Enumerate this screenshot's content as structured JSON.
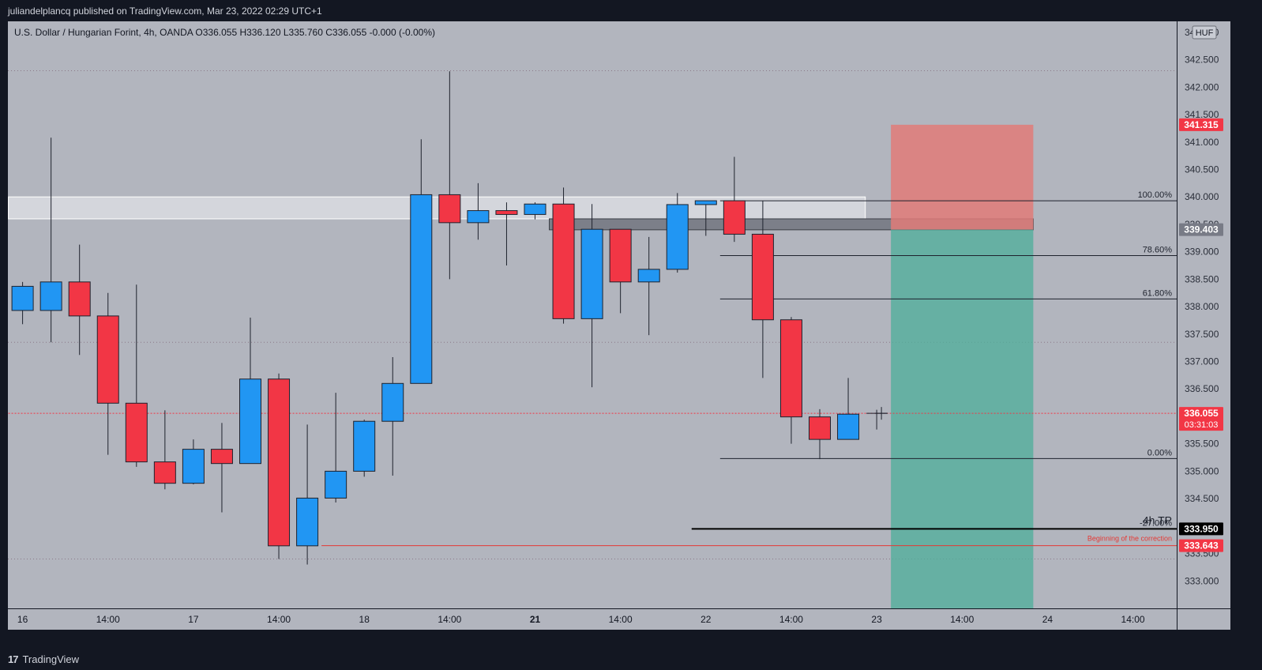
{
  "header": {
    "published": "juliandelplancq published on TradingView.com, Mar 23, 2022 02:29 UTC+1",
    "symbol_line": "U.S. Dollar / Hungarian Forint, 4h, OANDA  O336.055  H336.120  L335.760  C336.055  -0.000 (-0.00%)"
  },
  "footer": {
    "brand": "TradingView",
    "logo_glyph": "17"
  },
  "colors": {
    "background": "#b2b5be",
    "up": "#2196f3",
    "down": "#f23645",
    "tp_zone": "#4caf9a",
    "sl_zone": "#e07b79"
  },
  "chart_data": {
    "type": "candlestick",
    "symbol": "USDHUF",
    "timeframe": "4h",
    "currency": "HUF",
    "ylim": [
      332.5,
      343.2
    ],
    "y_ticks": [
      333.0,
      333.5,
      334.0,
      334.5,
      335.0,
      335.5,
      336.0,
      336.5,
      337.0,
      337.5,
      338.0,
      338.5,
      339.0,
      339.5,
      340.0,
      340.5,
      341.0,
      341.5,
      342.0,
      342.5,
      343.0
    ],
    "y_tick_labels": [
      "333.000",
      "333.500",
      "334.000",
      "334.500",
      "335.000",
      "335.500",
      "336.000",
      "336.500",
      "337.000",
      "337.500",
      "338.000",
      "338.500",
      "339.000",
      "339.500",
      "340.000",
      "340.500",
      "341.000",
      "341.500",
      "342.000",
      "342.500",
      "343.000"
    ],
    "x_labels": [
      {
        "bar": 0,
        "label": "16",
        "bold": false
      },
      {
        "bar": 3,
        "label": "14:00",
        "bold": false
      },
      {
        "bar": 6,
        "label": "17",
        "bold": false
      },
      {
        "bar": 9,
        "label": "14:00",
        "bold": false
      },
      {
        "bar": 12,
        "label": "18",
        "bold": false
      },
      {
        "bar": 15,
        "label": "14:00",
        "bold": false
      },
      {
        "bar": 18,
        "label": "21",
        "bold": true
      },
      {
        "bar": 21,
        "label": "14:00",
        "bold": false
      },
      {
        "bar": 24,
        "label": "22",
        "bold": false
      },
      {
        "bar": 27,
        "label": "14:00",
        "bold": false
      },
      {
        "bar": 30,
        "label": "23",
        "bold": false
      },
      {
        "bar": 33,
        "label": "14:00",
        "bold": false
      },
      {
        "bar": 36,
        "label": "24",
        "bold": false
      },
      {
        "bar": 39,
        "label": "14:00",
        "bold": false
      }
    ],
    "candles": [
      {
        "o": 337.93,
        "h": 338.45,
        "l": 337.68,
        "c": 338.37
      },
      {
        "o": 337.93,
        "h": 341.08,
        "l": 337.35,
        "c": 338.45
      },
      {
        "o": 338.45,
        "h": 339.13,
        "l": 337.12,
        "c": 337.83
      },
      {
        "o": 337.83,
        "h": 338.25,
        "l": 335.3,
        "c": 336.24
      },
      {
        "o": 336.24,
        "h": 338.4,
        "l": 335.08,
        "c": 335.17
      },
      {
        "o": 335.17,
        "h": 336.11,
        "l": 334.67,
        "c": 334.78
      },
      {
        "o": 334.78,
        "h": 335.58,
        "l": 334.76,
        "c": 335.4
      },
      {
        "o": 335.4,
        "h": 335.88,
        "l": 334.25,
        "c": 335.14
      },
      {
        "o": 335.14,
        "h": 337.8,
        "l": 335.14,
        "c": 336.68
      },
      {
        "o": 336.68,
        "h": 336.78,
        "l": 333.4,
        "c": 333.64
      },
      {
        "o": 333.64,
        "h": 335.85,
        "l": 333.3,
        "c": 334.51
      },
      {
        "o": 334.51,
        "h": 336.43,
        "l": 334.43,
        "c": 335.0
      },
      {
        "o": 335.0,
        "h": 335.94,
        "l": 334.9,
        "c": 335.91
      },
      {
        "o": 335.91,
        "h": 337.08,
        "l": 334.92,
        "c": 336.6
      },
      {
        "o": 336.6,
        "h": 341.05,
        "l": 336.6,
        "c": 340.04
      },
      {
        "o": 340.04,
        "h": 342.29,
        "l": 338.5,
        "c": 339.53
      },
      {
        "o": 339.53,
        "h": 340.25,
        "l": 339.22,
        "c": 339.75
      },
      {
        "o": 339.75,
        "h": 339.9,
        "l": 338.75,
        "c": 339.68
      },
      {
        "o": 339.68,
        "h": 339.9,
        "l": 339.59,
        "c": 339.87
      },
      {
        "o": 339.87,
        "h": 340.17,
        "l": 337.69,
        "c": 337.78
      },
      {
        "o": 337.78,
        "h": 339.87,
        "l": 336.53,
        "c": 339.41
      },
      {
        "o": 339.41,
        "h": 339.41,
        "l": 337.88,
        "c": 338.45
      },
      {
        "o": 338.45,
        "h": 339.27,
        "l": 337.48,
        "c": 338.68
      },
      {
        "o": 338.68,
        "h": 340.07,
        "l": 338.62,
        "c": 339.86
      },
      {
        "o": 339.86,
        "h": 339.9,
        "l": 339.29,
        "c": 339.93
      },
      {
        "o": 339.93,
        "h": 340.73,
        "l": 339.18,
        "c": 339.32
      },
      {
        "o": 339.32,
        "h": 339.93,
        "l": 336.7,
        "c": 337.76
      },
      {
        "o": 337.76,
        "h": 337.81,
        "l": 335.5,
        "c": 335.99
      },
      {
        "o": 335.99,
        "h": 336.13,
        "l": 335.22,
        "c": 335.58
      },
      {
        "o": 335.58,
        "h": 336.7,
        "l": 335.58,
        "c": 336.04
      },
      {
        "o": 336.055,
        "h": 336.12,
        "l": 335.76,
        "c": 336.055
      }
    ],
    "horizontal_zones": [
      {
        "name": "resistance-zone",
        "y1": 340.0,
        "y2": 339.6,
        "x1_bar": -0.5,
        "x2_bar": 29.6,
        "fill": "rgba(240,240,244,0.55)",
        "stroke": "#ffffff"
      },
      {
        "name": "supply-block",
        "y1": 339.6,
        "y2": 339.4,
        "x1_bar": 18.5,
        "x2_bar": 35.5,
        "fill": "rgba(110,114,124,0.8)",
        "stroke": "#3b3e46"
      }
    ],
    "fib_levels": [
      {
        "label": "100.00%",
        "price": 339.93
      },
      {
        "label": "78.60%",
        "price": 338.93
      },
      {
        "label": "61.80%",
        "price": 338.14
      },
      {
        "label": "0.00%",
        "price": 335.23
      },
      {
        "label": "-27.00%",
        "price": 333.95
      }
    ],
    "fib_start_bar": 24.5,
    "position": {
      "entry": 339.403,
      "stop": 341.315,
      "target": 332.5,
      "x1_bar": 30.5,
      "x2_bar": 35.5
    },
    "lines": [
      {
        "name": "4h-tp-line",
        "price": 333.95,
        "x1_bar": 23.5,
        "color": "#000000",
        "label": "4h TP"
      },
      {
        "name": "correction-line",
        "price": 333.643,
        "x1_bar": 10.5,
        "color": "#e53935",
        "label": "Beginning of the correction"
      },
      {
        "name": "last-price-line",
        "price": 336.055,
        "x1_bar": -0.5,
        "color": "#f23645",
        "label": ""
      }
    ],
    "dotted_levels": [
      342.3,
      337.35,
      333.4
    ],
    "price_tags": [
      {
        "name": "stop-price-tag",
        "text": "341.315",
        "price": 341.315,
        "bg": "#f23645",
        "fg": "#ffffff"
      },
      {
        "name": "entry-price-tag",
        "text": "339.403",
        "price": 339.403,
        "bg": "#787b86",
        "fg": "#ffffff"
      },
      {
        "name": "last-price-tag",
        "text": "336.055",
        "sub": "03:31:03",
        "price": 336.055,
        "bg": "#f23645",
        "fg": "#ffffff"
      },
      {
        "name": "tp-price-tag",
        "text": "333.950",
        "price": 333.95,
        "bg": "#000000",
        "fg": "#ffffff"
      },
      {
        "name": "correction-price-tag",
        "text": "333.643",
        "price": 333.643,
        "bg": "#f23645",
        "fg": "#ffffff"
      }
    ]
  }
}
